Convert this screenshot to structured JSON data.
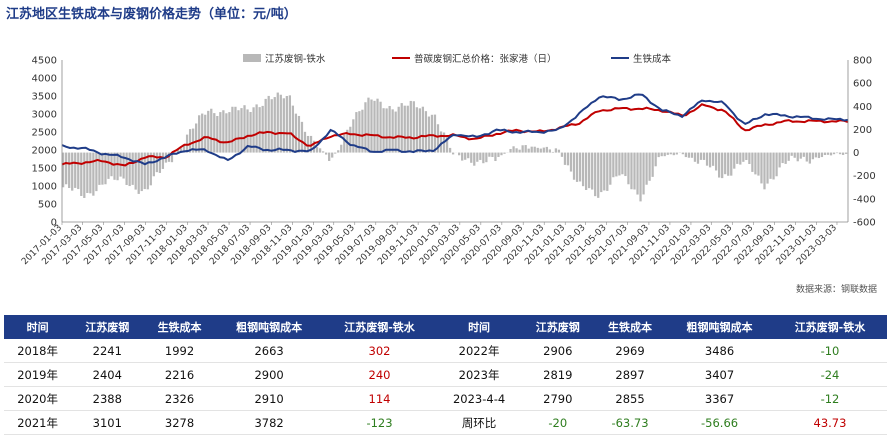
{
  "title": "江苏地区生铁成本与废钢价格走势（单位：元/吨）",
  "source": "数据来源：钢联数据",
  "chart_data": {
    "type": "line",
    "x_dates": [
      "2017-01-03",
      "2017-03-03",
      "2017-05-03",
      "2017-07-03",
      "2017-09-03",
      "2017-11-03",
      "2018-01-03",
      "2018-03-03",
      "2018-05-03",
      "2018-07-03",
      "2018-09-03",
      "2018-11-03",
      "2019-01-03",
      "2019-03-03",
      "2019-05-03",
      "2019-07-03",
      "2019-09-03",
      "2019-11-03",
      "2020-01-03",
      "2020-03-03",
      "2020-05-03",
      "2020-07-03",
      "2020-09-03",
      "2020-11-03",
      "2021-01-03",
      "2021-03-03",
      "2021-05-03",
      "2021-07-03",
      "2021-09-03",
      "2021-11-03",
      "2022-01-03",
      "2022-03-03",
      "2022-05-03",
      "2022-07-03",
      "2022-09-03",
      "2022-11-03",
      "2023-01-03",
      "2023-03-03",
      "2023-04-04"
    ],
    "left_axis": {
      "min": 0,
      "max": 4500,
      "ticks": [
        0,
        500,
        1000,
        1500,
        2000,
        2500,
        3000,
        3500,
        4000,
        4500
      ]
    },
    "right_axis": {
      "min": -600,
      "max": 800,
      "ticks": [
        -600,
        -400,
        -200,
        0,
        200,
        400,
        600,
        800
      ]
    },
    "legend_position": "top",
    "series": [
      {
        "name": "江苏废钢-铁水",
        "type": "bar",
        "axis": "right",
        "color": "#b8b8b8",
        "values": [
          -300,
          -380,
          -250,
          -250,
          -330,
          -120,
          150,
          350,
          380,
          350,
          500,
          450,
          150,
          -100,
          300,
          450,
          400,
          400,
          350,
          -50,
          -60,
          -80,
          80,
          30,
          50,
          -300,
          -350,
          -200,
          -380,
          -50,
          0,
          -100,
          -200,
          -80,
          -280,
          -100,
          -50,
          -30,
          -12
        ]
      },
      {
        "name": "普碳废钢汇总价格：张家港（日）",
        "type": "line",
        "axis": "left",
        "color": "#c00000",
        "values": [
          1600,
          1650,
          1700,
          1550,
          1800,
          1800,
          2150,
          2350,
          2200,
          2400,
          2500,
          2450,
          2100,
          2400,
          2450,
          2400,
          2350,
          2350,
          2400,
          2400,
          2300,
          2450,
          2550,
          2500,
          2600,
          2750,
          3100,
          3150,
          3150,
          3100,
          2950,
          3250,
          3100,
          2550,
          2700,
          2800,
          2800,
          2800,
          2790
        ]
      },
      {
        "name": "生铁成本",
        "type": "line",
        "axis": "left",
        "color": "#1f3c88",
        "values": [
          2100,
          2050,
          1900,
          1800,
          1600,
          1800,
          2000,
          2000,
          1700,
          2100,
          2000,
          2000,
          1950,
          2550,
          2150,
          1950,
          2000,
          1950,
          2000,
          2450,
          2350,
          2550,
          2500,
          2500,
          2550,
          3000,
          3500,
          3400,
          3550,
          3100,
          2950,
          3400,
          3300,
          2700,
          3000,
          2950,
          2900,
          2850,
          2855
        ]
      }
    ]
  },
  "table": {
    "headers": [
      "时间",
      "江苏废钢",
      "生铁成本",
      "粗钢吨钢成本",
      "江苏废钢-铁水",
      "时间",
      "江苏废钢",
      "生铁成本",
      "粗钢吨钢成本",
      "江苏废钢-铁水"
    ],
    "rows": [
      [
        "2018年",
        "2241",
        "1992",
        "2663",
        "302",
        "2022年",
        "2906",
        "2969",
        "3486",
        "-10"
      ],
      [
        "2019年",
        "2404",
        "2216",
        "2900",
        "240",
        "2023年",
        "2819",
        "2897",
        "3407",
        "-24"
      ],
      [
        "2020年",
        "2388",
        "2326",
        "2910",
        "114",
        "2023-4-4",
        "2790",
        "2855",
        "3367",
        "-12"
      ],
      [
        "2021年",
        "3101",
        "3278",
        "3782",
        "-123",
        "周环比",
        "-20",
        "-63.73",
        "-56.66",
        "43.73"
      ]
    ],
    "value_colors": {
      "positive": "#c00000",
      "negative": "#2e7d1e"
    }
  }
}
